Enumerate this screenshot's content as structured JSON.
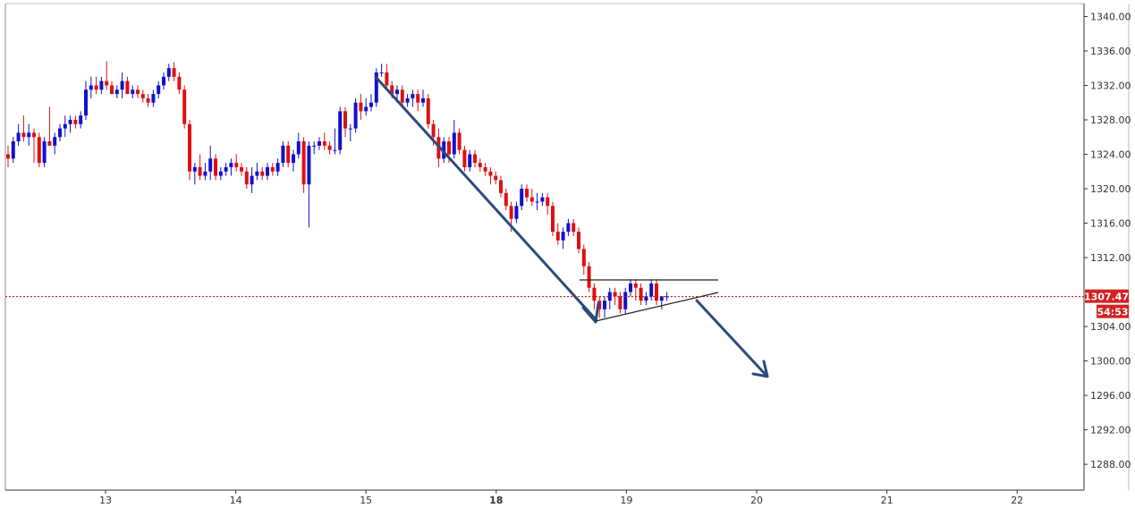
{
  "chart_data": {
    "type": "candlestick",
    "y_axis": {
      "ticks": [
        "1340.00",
        "1336.00",
        "1332.00",
        "1328.00",
        "1324.00",
        "1320.00",
        "1316.00",
        "1312.00",
        "1304.00",
        "1300.00",
        "1296.00",
        "1292.00",
        "1288.00"
      ],
      "ylim": [
        1285.0,
        1341.5
      ],
      "position": "right"
    },
    "x_axis": {
      "ticks": [
        {
          "label": "13",
          "bold": false
        },
        {
          "label": "14",
          "bold": false
        },
        {
          "label": "15",
          "bold": false
        },
        {
          "label": "18",
          "bold": true
        },
        {
          "label": "19",
          "bold": false
        },
        {
          "label": "20",
          "bold": false
        },
        {
          "label": "21",
          "bold": false
        },
        {
          "label": "22",
          "bold": false
        }
      ]
    },
    "current_price": {
      "value": "1307.47",
      "countdown": "54:53"
    },
    "candles": [
      [
        1324.0,
        1325.0,
        1322.5,
        1323.5
      ],
      [
        1323.5,
        1326.0,
        1323.0,
        1325.5
      ],
      [
        1325.5,
        1327.5,
        1325.0,
        1326.5
      ],
      [
        1326.5,
        1328.5,
        1325.5,
        1326.0
      ],
      [
        1326.0,
        1327.5,
        1325.0,
        1326.5
      ],
      [
        1326.5,
        1327.0,
        1323.0,
        1326.0
      ],
      [
        1326.0,
        1326.5,
        1322.5,
        1323.0
      ],
      [
        1323.0,
        1326.0,
        1322.5,
        1325.5
      ],
      [
        1325.5,
        1329.5,
        1325.0,
        1325.0
      ],
      [
        1325.0,
        1326.5,
        1324.0,
        1326.0
      ],
      [
        1326.0,
        1327.5,
        1325.5,
        1327.0
      ],
      [
        1327.0,
        1328.5,
        1326.0,
        1327.5
      ],
      [
        1327.5,
        1328.5,
        1326.5,
        1328.0
      ],
      [
        1328.0,
        1328.5,
        1327.0,
        1327.5
      ],
      [
        1327.5,
        1329.0,
        1327.0,
        1328.5
      ],
      [
        1328.5,
        1332.5,
        1328.0,
        1331.5
      ],
      [
        1331.5,
        1333.0,
        1330.5,
        1332.0
      ],
      [
        1332.0,
        1333.0,
        1331.0,
        1331.5
      ],
      [
        1331.5,
        1333.0,
        1331.0,
        1332.5
      ],
      [
        1332.5,
        1334.8,
        1331.5,
        1332.0
      ],
      [
        1332.0,
        1332.5,
        1331.0,
        1331.0
      ],
      [
        1331.0,
        1332.0,
        1330.5,
        1331.5
      ],
      [
        1331.5,
        1333.5,
        1330.5,
        1332.5
      ],
      [
        1332.5,
        1333.0,
        1331.0,
        1331.0
      ],
      [
        1331.0,
        1332.0,
        1330.5,
        1331.5
      ],
      [
        1331.5,
        1332.0,
        1330.5,
        1331.0
      ],
      [
        1331.0,
        1331.5,
        1330.0,
        1330.5
      ],
      [
        1330.5,
        1331.0,
        1329.5,
        1330.0
      ],
      [
        1330.0,
        1331.5,
        1329.5,
        1331.0
      ],
      [
        1331.0,
        1332.5,
        1330.5,
        1332.0
      ],
      [
        1332.0,
        1333.5,
        1331.5,
        1333.0
      ],
      [
        1333.0,
        1334.5,
        1332.5,
        1334.0
      ],
      [
        1334.0,
        1334.7,
        1332.5,
        1333.0
      ],
      [
        1333.0,
        1333.5,
        1331.0,
        1331.5
      ],
      [
        1331.5,
        1332.0,
        1327.0,
        1327.5
      ],
      [
        1327.5,
        1328.0,
        1321.0,
        1322.0
      ],
      [
        1322.0,
        1323.0,
        1320.5,
        1322.5
      ],
      [
        1322.5,
        1324.0,
        1321.0,
        1321.5
      ],
      [
        1321.5,
        1323.0,
        1321.0,
        1322.0
      ],
      [
        1322.0,
        1325.0,
        1321.0,
        1323.5
      ],
      [
        1323.5,
        1324.0,
        1321.0,
        1321.5
      ],
      [
        1321.5,
        1322.5,
        1321.0,
        1322.0
      ],
      [
        1322.0,
        1323.0,
        1321.5,
        1322.5
      ],
      [
        1322.5,
        1323.5,
        1321.5,
        1323.0
      ],
      [
        1323.0,
        1324.0,
        1322.0,
        1322.5
      ],
      [
        1322.5,
        1323.0,
        1321.5,
        1322.0
      ],
      [
        1322.0,
        1322.5,
        1320.0,
        1320.5
      ],
      [
        1320.5,
        1322.5,
        1319.5,
        1321.5
      ],
      [
        1321.5,
        1323.0,
        1321.0,
        1322.0
      ],
      [
        1322.0,
        1322.5,
        1321.0,
        1321.5
      ],
      [
        1321.5,
        1323.0,
        1321.0,
        1322.5
      ],
      [
        1322.5,
        1323.0,
        1321.5,
        1322.0
      ],
      [
        1322.0,
        1323.5,
        1321.5,
        1323.0
      ],
      [
        1323.0,
        1325.5,
        1322.5,
        1325.0
      ],
      [
        1325.0,
        1325.5,
        1322.5,
        1323.0
      ],
      [
        1323.0,
        1324.5,
        1322.0,
        1324.0
      ],
      [
        1324.0,
        1326.5,
        1323.5,
        1325.5
      ],
      [
        1325.5,
        1326.0,
        1319.5,
        1320.5
      ],
      [
        1320.5,
        1325.5,
        1315.5,
        1325.0
      ],
      [
        1325.0,
        1325.5,
        1324.0,
        1325.0
      ],
      [
        1325.0,
        1326.0,
        1324.5,
        1325.5
      ],
      [
        1325.5,
        1326.5,
        1324.5,
        1325.0
      ],
      [
        1325.0,
        1325.5,
        1324.0,
        1324.5
      ],
      [
        1324.5,
        1327.0,
        1324.0,
        1324.5
      ],
      [
        1324.5,
        1329.5,
        1324.0,
        1329.0
      ],
      [
        1329.0,
        1329.5,
        1326.0,
        1327.0
      ],
      [
        1327.0,
        1327.5,
        1325.5,
        1327.0
      ],
      [
        1327.0,
        1330.5,
        1326.5,
        1330.0
      ],
      [
        1330.0,
        1331.0,
        1328.0,
        1329.0
      ],
      [
        1329.0,
        1330.5,
        1328.5,
        1329.5
      ],
      [
        1329.5,
        1331.0,
        1329.0,
        1330.0
      ],
      [
        1330.0,
        1334.0,
        1329.5,
        1333.5
      ],
      [
        1333.5,
        1334.5,
        1333.0,
        1333.5
      ],
      [
        1333.5,
        1334.5,
        1331.5,
        1332.0
      ],
      [
        1332.0,
        1332.5,
        1330.5,
        1331.0
      ],
      [
        1331.0,
        1332.0,
        1330.0,
        1331.5
      ],
      [
        1331.5,
        1332.0,
        1329.5,
        1330.0
      ],
      [
        1330.0,
        1331.0,
        1329.5,
        1330.5
      ],
      [
        1330.5,
        1331.5,
        1329.5,
        1331.0
      ],
      [
        1331.0,
        1331.5,
        1329.0,
        1330.0
      ],
      [
        1330.0,
        1331.5,
        1329.5,
        1330.5
      ],
      [
        1330.5,
        1331.0,
        1327.0,
        1327.5
      ],
      [
        1327.5,
        1328.0,
        1325.0,
        1326.0
      ],
      [
        1326.0,
        1327.0,
        1322.5,
        1323.5
      ],
      [
        1323.5,
        1326.0,
        1323.0,
        1325.5
      ],
      [
        1325.5,
        1326.0,
        1323.0,
        1324.0
      ],
      [
        1324.0,
        1328.0,
        1323.5,
        1326.5
      ],
      [
        1326.5,
        1327.0,
        1324.0,
        1324.5
      ],
      [
        1324.5,
        1325.0,
        1322.0,
        1322.5
      ],
      [
        1322.5,
        1324.5,
        1322.0,
        1324.0
      ],
      [
        1324.0,
        1324.5,
        1322.5,
        1323.0
      ],
      [
        1323.0,
        1323.5,
        1322.0,
        1322.5
      ],
      [
        1322.5,
        1323.0,
        1321.5,
        1322.0
      ],
      [
        1322.0,
        1322.5,
        1320.5,
        1321.5
      ],
      [
        1321.5,
        1322.0,
        1320.5,
        1321.0
      ],
      [
        1321.0,
        1321.5,
        1319.0,
        1319.5
      ],
      [
        1319.5,
        1320.0,
        1317.5,
        1318.0
      ],
      [
        1318.0,
        1318.5,
        1315.0,
        1316.5
      ],
      [
        1316.5,
        1318.5,
        1316.0,
        1318.0
      ],
      [
        1318.0,
        1320.5,
        1317.5,
        1320.0
      ],
      [
        1320.0,
        1320.5,
        1318.5,
        1319.0
      ],
      [
        1319.0,
        1320.0,
        1318.0,
        1318.5
      ],
      [
        1318.5,
        1319.5,
        1317.5,
        1318.5
      ],
      [
        1318.5,
        1319.5,
        1318.0,
        1319.0
      ],
      [
        1319.0,
        1319.5,
        1317.0,
        1318.0
      ],
      [
        1318.0,
        1318.5,
        1314.5,
        1315.0
      ],
      [
        1315.0,
        1316.0,
        1313.5,
        1314.0
      ],
      [
        1314.0,
        1315.5,
        1313.0,
        1315.0
      ],
      [
        1315.0,
        1316.5,
        1314.5,
        1316.0
      ],
      [
        1316.0,
        1316.5,
        1314.5,
        1315.0
      ],
      [
        1315.0,
        1315.5,
        1312.5,
        1313.0
      ],
      [
        1313.0,
        1313.5,
        1310.0,
        1311.0
      ],
      [
        1311.0,
        1311.5,
        1308.0,
        1308.5
      ],
      [
        1308.5,
        1309.0,
        1306.0,
        1307.0
      ],
      [
        1307.0,
        1307.5,
        1305.0,
        1306.0
      ],
      [
        1306.0,
        1307.5,
        1305.0,
        1307.0
      ],
      [
        1307.0,
        1308.5,
        1306.0,
        1308.0
      ],
      [
        1308.0,
        1308.5,
        1306.5,
        1307.5
      ],
      [
        1307.5,
        1308.0,
        1305.5,
        1306.0
      ],
      [
        1306.0,
        1308.5,
        1305.5,
        1308.0
      ],
      [
        1308.0,
        1309.5,
        1307.5,
        1309.0
      ],
      [
        1309.0,
        1309.5,
        1307.0,
        1308.5
      ],
      [
        1308.5,
        1309.0,
        1306.5,
        1307.0
      ],
      [
        1307.0,
        1308.0,
        1306.5,
        1307.5
      ],
      [
        1307.5,
        1309.5,
        1307.0,
        1309.0
      ],
      [
        1309.0,
        1309.5,
        1306.5,
        1307.0
      ],
      [
        1307.0,
        1307.5,
        1306.0,
        1307.5
      ],
      [
        1307.5,
        1308.0,
        1307.0,
        1307.5
      ]
    ]
  }
}
